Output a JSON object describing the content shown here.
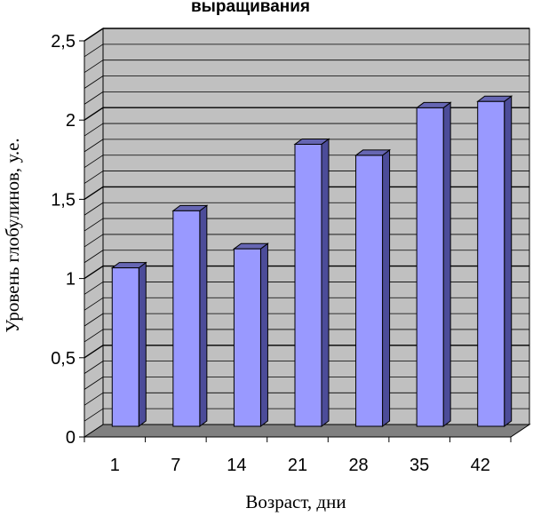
{
  "chart_data": {
    "type": "bar",
    "title": "выращивания",
    "xlabel": "Возраст, дни",
    "ylabel": "Уровень глобулинов, у.е.",
    "categories": [
      "1",
      "7",
      "14",
      "21",
      "28",
      "35",
      "42"
    ],
    "values": [
      1.0,
      1.36,
      1.12,
      1.78,
      1.71,
      2.01,
      2.05
    ],
    "ylim": [
      0,
      2.5
    ],
    "yticks": [
      "0",
      "0,5",
      "1",
      "1,5",
      "2",
      "2,5"
    ],
    "grid": true,
    "legend": "none",
    "colors": {
      "bar_front": "#9999ff",
      "bar_side": "#4c4c99",
      "bar_top": "#6666b3",
      "wall": "#c0c0c0",
      "floor": "#808080"
    }
  }
}
